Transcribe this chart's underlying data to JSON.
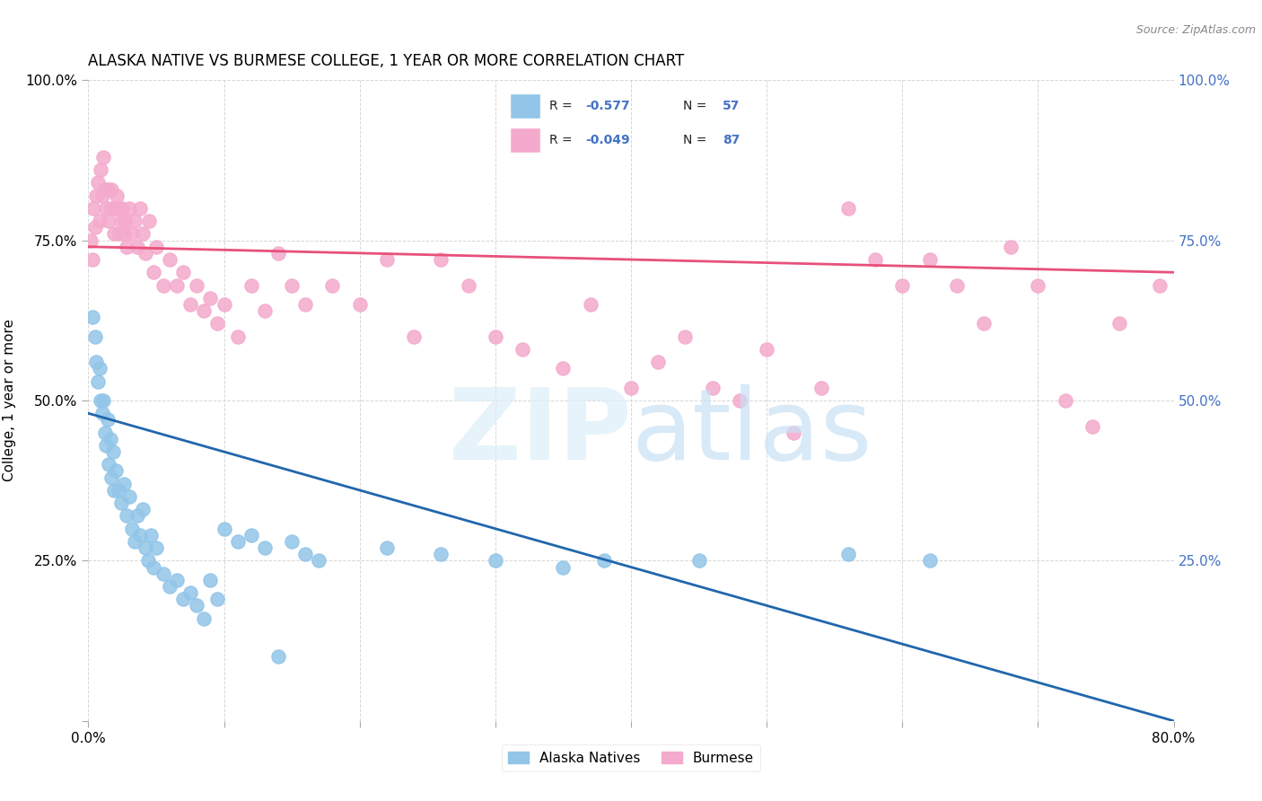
{
  "title": "ALASKA NATIVE VS BURMESE COLLEGE, 1 YEAR OR MORE CORRELATION CHART",
  "source": "Source: ZipAtlas.com",
  "ylabel": "College, 1 year or more",
  "xlim": [
    0.0,
    0.8
  ],
  "ylim": [
    0.0,
    1.0
  ],
  "blue_color": "#92C5E8",
  "pink_color": "#F4AACC",
  "blue_line_color": "#2166AC",
  "pink_line_color": "#E8507A",
  "axis_label_color": "#4472C4",
  "blue_line_x": [
    0.0,
    0.8
  ],
  "blue_line_y": [
    0.48,
    0.0
  ],
  "pink_line_x": [
    0.0,
    0.8
  ],
  "pink_line_y": [
    0.74,
    0.7
  ],
  "blue_scatter": [
    [
      0.003,
      0.63
    ],
    [
      0.005,
      0.6
    ],
    [
      0.006,
      0.56
    ],
    [
      0.007,
      0.53
    ],
    [
      0.008,
      0.55
    ],
    [
      0.009,
      0.5
    ],
    [
      0.01,
      0.48
    ],
    [
      0.011,
      0.5
    ],
    [
      0.012,
      0.45
    ],
    [
      0.013,
      0.43
    ],
    [
      0.014,
      0.47
    ],
    [
      0.015,
      0.4
    ],
    [
      0.016,
      0.44
    ],
    [
      0.017,
      0.38
    ],
    [
      0.018,
      0.42
    ],
    [
      0.019,
      0.36
    ],
    [
      0.02,
      0.39
    ],
    [
      0.022,
      0.36
    ],
    [
      0.024,
      0.34
    ],
    [
      0.026,
      0.37
    ],
    [
      0.028,
      0.32
    ],
    [
      0.03,
      0.35
    ],
    [
      0.032,
      0.3
    ],
    [
      0.034,
      0.28
    ],
    [
      0.036,
      0.32
    ],
    [
      0.038,
      0.29
    ],
    [
      0.04,
      0.33
    ],
    [
      0.042,
      0.27
    ],
    [
      0.044,
      0.25
    ],
    [
      0.046,
      0.29
    ],
    [
      0.048,
      0.24
    ],
    [
      0.05,
      0.27
    ],
    [
      0.055,
      0.23
    ],
    [
      0.06,
      0.21
    ],
    [
      0.065,
      0.22
    ],
    [
      0.07,
      0.19
    ],
    [
      0.075,
      0.2
    ],
    [
      0.08,
      0.18
    ],
    [
      0.085,
      0.16
    ],
    [
      0.09,
      0.22
    ],
    [
      0.095,
      0.19
    ],
    [
      0.1,
      0.3
    ],
    [
      0.11,
      0.28
    ],
    [
      0.12,
      0.29
    ],
    [
      0.13,
      0.27
    ],
    [
      0.14,
      0.1
    ],
    [
      0.15,
      0.28
    ],
    [
      0.16,
      0.26
    ],
    [
      0.17,
      0.25
    ],
    [
      0.22,
      0.27
    ],
    [
      0.26,
      0.26
    ],
    [
      0.3,
      0.25
    ],
    [
      0.35,
      0.24
    ],
    [
      0.38,
      0.25
    ],
    [
      0.45,
      0.25
    ],
    [
      0.56,
      0.26
    ],
    [
      0.62,
      0.25
    ]
  ],
  "pink_scatter": [
    [
      0.002,
      0.75
    ],
    [
      0.003,
      0.72
    ],
    [
      0.004,
      0.8
    ],
    [
      0.005,
      0.77
    ],
    [
      0.006,
      0.82
    ],
    [
      0.007,
      0.84
    ],
    [
      0.008,
      0.78
    ],
    [
      0.009,
      0.86
    ],
    [
      0.01,
      0.82
    ],
    [
      0.011,
      0.88
    ],
    [
      0.012,
      0.83
    ],
    [
      0.013,
      0.8
    ],
    [
      0.014,
      0.83
    ],
    [
      0.015,
      0.78
    ],
    [
      0.016,
      0.8
    ],
    [
      0.017,
      0.83
    ],
    [
      0.018,
      0.8
    ],
    [
      0.019,
      0.76
    ],
    [
      0.02,
      0.8
    ],
    [
      0.021,
      0.82
    ],
    [
      0.022,
      0.76
    ],
    [
      0.023,
      0.8
    ],
    [
      0.024,
      0.78
    ],
    [
      0.025,
      0.8
    ],
    [
      0.026,
      0.76
    ],
    [
      0.027,
      0.78
    ],
    [
      0.028,
      0.74
    ],
    [
      0.03,
      0.8
    ],
    [
      0.032,
      0.76
    ],
    [
      0.034,
      0.78
    ],
    [
      0.036,
      0.74
    ],
    [
      0.038,
      0.8
    ],
    [
      0.04,
      0.76
    ],
    [
      0.042,
      0.73
    ],
    [
      0.045,
      0.78
    ],
    [
      0.048,
      0.7
    ],
    [
      0.05,
      0.74
    ],
    [
      0.055,
      0.68
    ],
    [
      0.06,
      0.72
    ],
    [
      0.065,
      0.68
    ],
    [
      0.07,
      0.7
    ],
    [
      0.075,
      0.65
    ],
    [
      0.08,
      0.68
    ],
    [
      0.085,
      0.64
    ],
    [
      0.09,
      0.66
    ],
    [
      0.095,
      0.62
    ],
    [
      0.1,
      0.65
    ],
    [
      0.11,
      0.6
    ],
    [
      0.12,
      0.68
    ],
    [
      0.13,
      0.64
    ],
    [
      0.14,
      0.73
    ],
    [
      0.15,
      0.68
    ],
    [
      0.16,
      0.65
    ],
    [
      0.18,
      0.68
    ],
    [
      0.2,
      0.65
    ],
    [
      0.22,
      0.72
    ],
    [
      0.24,
      0.6
    ],
    [
      0.26,
      0.72
    ],
    [
      0.28,
      0.68
    ],
    [
      0.3,
      0.6
    ],
    [
      0.32,
      0.58
    ],
    [
      0.35,
      0.55
    ],
    [
      0.37,
      0.65
    ],
    [
      0.4,
      0.52
    ],
    [
      0.42,
      0.56
    ],
    [
      0.44,
      0.6
    ],
    [
      0.46,
      0.52
    ],
    [
      0.48,
      0.5
    ],
    [
      0.5,
      0.58
    ],
    [
      0.52,
      0.45
    ],
    [
      0.54,
      0.52
    ],
    [
      0.56,
      0.8
    ],
    [
      0.58,
      0.72
    ],
    [
      0.6,
      0.68
    ],
    [
      0.62,
      0.72
    ],
    [
      0.64,
      0.68
    ],
    [
      0.66,
      0.62
    ],
    [
      0.68,
      0.74
    ],
    [
      0.7,
      0.68
    ],
    [
      0.72,
      0.5
    ],
    [
      0.74,
      0.46
    ],
    [
      0.76,
      0.62
    ],
    [
      0.79,
      0.68
    ]
  ],
  "background_color": "#FFFFFF",
  "grid_color": "#CCCCCC"
}
